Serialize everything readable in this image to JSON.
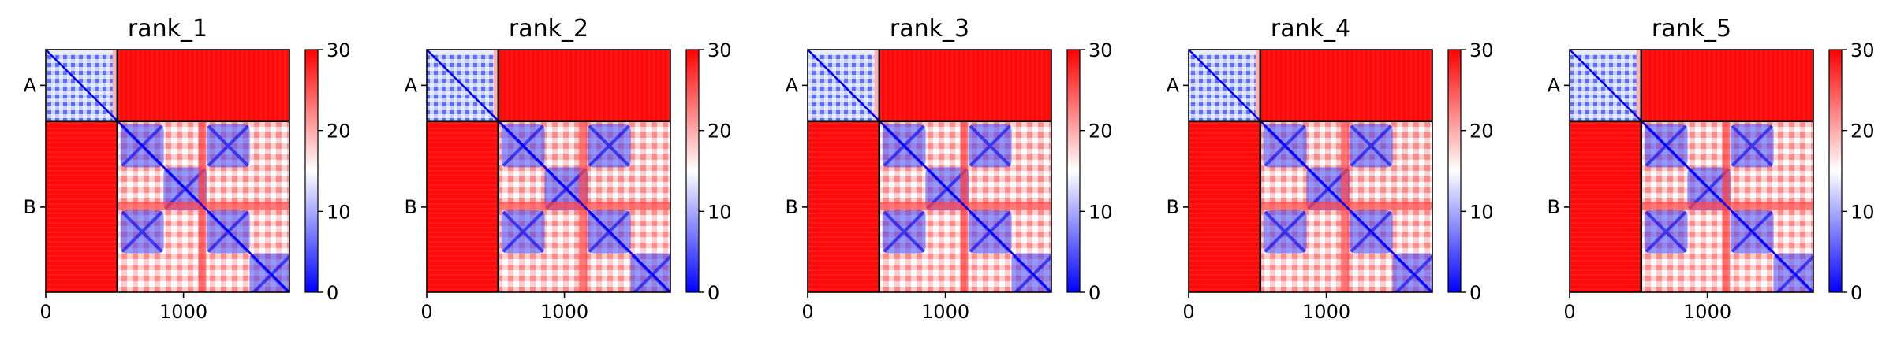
{
  "chart_data": [
    {
      "type": "heatmap",
      "title": "rank_1",
      "x_ticks": [
        "0",
        "1000"
      ],
      "x_tick_values": [
        0,
        1000
      ],
      "y_ticks": [
        "A",
        "B"
      ],
      "extent": [
        0,
        1770
      ],
      "chain_boundary": 520,
      "colorbar": {
        "colormap": "bwr",
        "min": 0,
        "max": 30,
        "ticks": [
          "0",
          "10",
          "20",
          "30"
        ]
      }
    },
    {
      "type": "heatmap",
      "title": "rank_2",
      "x_ticks": [
        "0",
        "1000"
      ],
      "x_tick_values": [
        0,
        1000
      ],
      "y_ticks": [
        "A",
        "B"
      ],
      "extent": [
        0,
        1770
      ],
      "chain_boundary": 520,
      "colorbar": {
        "colormap": "bwr",
        "min": 0,
        "max": 30,
        "ticks": [
          "0",
          "10",
          "20",
          "30"
        ]
      }
    },
    {
      "type": "heatmap",
      "title": "rank_3",
      "x_ticks": [
        "0",
        "1000"
      ],
      "x_tick_values": [
        0,
        1000
      ],
      "y_ticks": [
        "A",
        "B"
      ],
      "extent": [
        0,
        1770
      ],
      "chain_boundary": 520,
      "colorbar": {
        "colormap": "bwr",
        "min": 0,
        "max": 30,
        "ticks": [
          "0",
          "10",
          "20",
          "30"
        ]
      }
    },
    {
      "type": "heatmap",
      "title": "rank_4",
      "x_ticks": [
        "0",
        "1000"
      ],
      "x_tick_values": [
        0,
        1000
      ],
      "y_ticks": [
        "A",
        "B"
      ],
      "extent": [
        0,
        1770
      ],
      "chain_boundary": 520,
      "colorbar": {
        "colormap": "bwr",
        "min": 0,
        "max": 30,
        "ticks": [
          "0",
          "10",
          "20",
          "30"
        ]
      }
    },
    {
      "type": "heatmap",
      "title": "rank_5",
      "x_ticks": [
        "0",
        "1000"
      ],
      "x_tick_values": [
        0,
        1000
      ],
      "y_ticks": [
        "A",
        "B"
      ],
      "extent": [
        0,
        1770
      ],
      "chain_boundary": 520,
      "colorbar": {
        "colormap": "bwr",
        "min": 0,
        "max": 30,
        "ticks": [
          "0",
          "10",
          "20",
          "30"
        ]
      }
    }
  ],
  "colors": {
    "high": "#ff0000",
    "mid": "#ffffff",
    "low": "#0000ff",
    "border": "#000000"
  }
}
